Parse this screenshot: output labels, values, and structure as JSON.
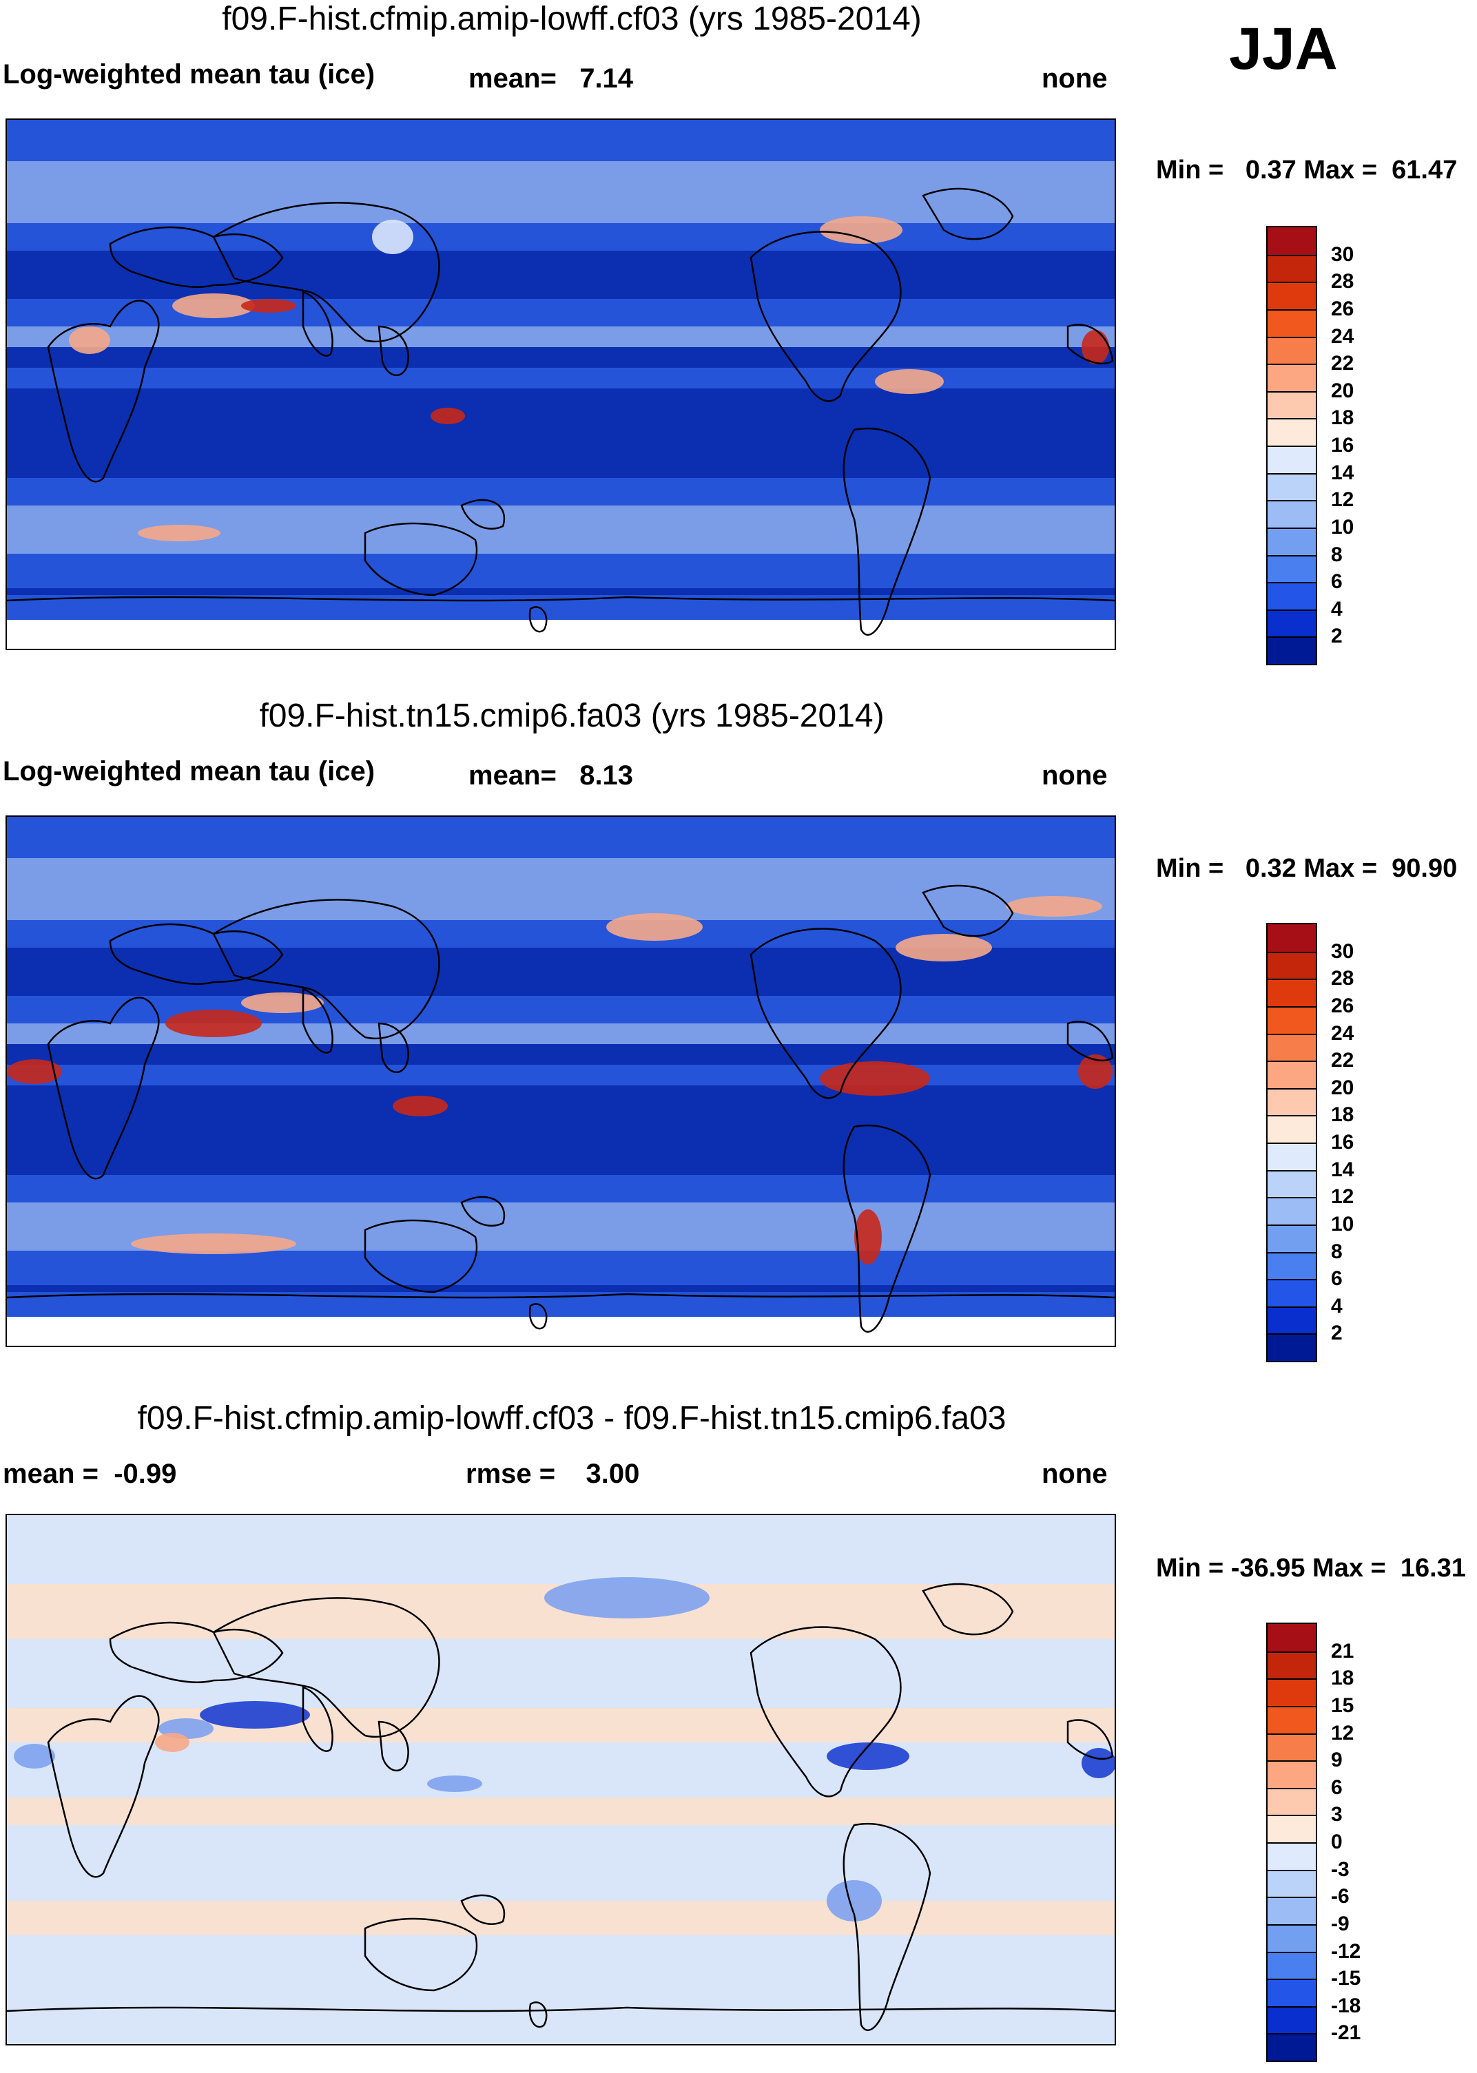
{
  "season": "JJA",
  "panels": [
    {
      "title": "f09.F-hist.cfmip.amip-lowff.cf03 (yrs 1985-2014)",
      "left_label": "Log-weighted mean tau (ice)",
      "center_label": "mean=   7.14",
      "right_label": "none",
      "minmax": "Min =   0.37 Max =  61.47",
      "colorbar_ticks": [
        "30",
        "28",
        "26",
        "24",
        "22",
        "20",
        "18",
        "16",
        "14",
        "12",
        "10",
        "8",
        "6",
        "4",
        "2"
      ],
      "colorbar_colors": [
        "#a50f15",
        "#c3260b",
        "#de3a0e",
        "#f0581e",
        "#f77e4a",
        "#fca782",
        "#fdcab0",
        "#feeadb",
        "#dfeafc",
        "#bcd3f9",
        "#9bbcf4",
        "#739ff0",
        "#4a7ff0",
        "#2356e8",
        "#0a2fcf",
        "#001a96"
      ]
    },
    {
      "title": "f09.F-hist.tn15.cmip6.fa03 (yrs 1985-2014)",
      "left_label": "Log-weighted mean tau (ice)",
      "center_label": "mean=   8.13",
      "right_label": "none",
      "minmax": "Min =   0.32 Max =  90.90",
      "colorbar_ticks": [
        "30",
        "28",
        "26",
        "24",
        "22",
        "20",
        "18",
        "16",
        "14",
        "12",
        "10",
        "8",
        "6",
        "4",
        "2"
      ],
      "colorbar_colors": [
        "#a50f15",
        "#c3260b",
        "#de3a0e",
        "#f0581e",
        "#f77e4a",
        "#fca782",
        "#fdcab0",
        "#feeadb",
        "#dfeafc",
        "#bcd3f9",
        "#9bbcf4",
        "#739ff0",
        "#4a7ff0",
        "#2356e8",
        "#0a2fcf",
        "#001a96"
      ]
    },
    {
      "title": "f09.F-hist.cfmip.amip-lowff.cf03 - f09.F-hist.tn15.cmip6.fa03",
      "left_label": "mean =  -0.99",
      "center_label": "rmse =    3.00",
      "right_label": "none",
      "minmax": "Min = -36.95 Max =  16.31",
      "colorbar_ticks": [
        "21",
        "18",
        "15",
        "12",
        "9",
        "6",
        "3",
        "0",
        "-3",
        "-6",
        "-9",
        "-12",
        "-15",
        "-18",
        "-21"
      ],
      "colorbar_colors": [
        "#a50f15",
        "#c3260b",
        "#de3a0e",
        "#f0581e",
        "#f77e4a",
        "#fca782",
        "#fdcab0",
        "#feeadb",
        "#dfeafc",
        "#bcd3f9",
        "#9bbcf4",
        "#739ff0",
        "#4a7ff0",
        "#2356e8",
        "#0a2fcf",
        "#001a96"
      ]
    }
  ],
  "map_colors": {
    "deep": "#0b2fb0",
    "mid": "#2a5be0",
    "light": "#8fb0f2",
    "pale": "#dbe7fb",
    "warm": "#f5a98a",
    "hot": "#c8281a",
    "diff_base": "#d9e6fa",
    "diff_pos": "#fbe0cc",
    "diff_neg": "#7ea2ee",
    "diff_strong": "#1d3fd0"
  }
}
